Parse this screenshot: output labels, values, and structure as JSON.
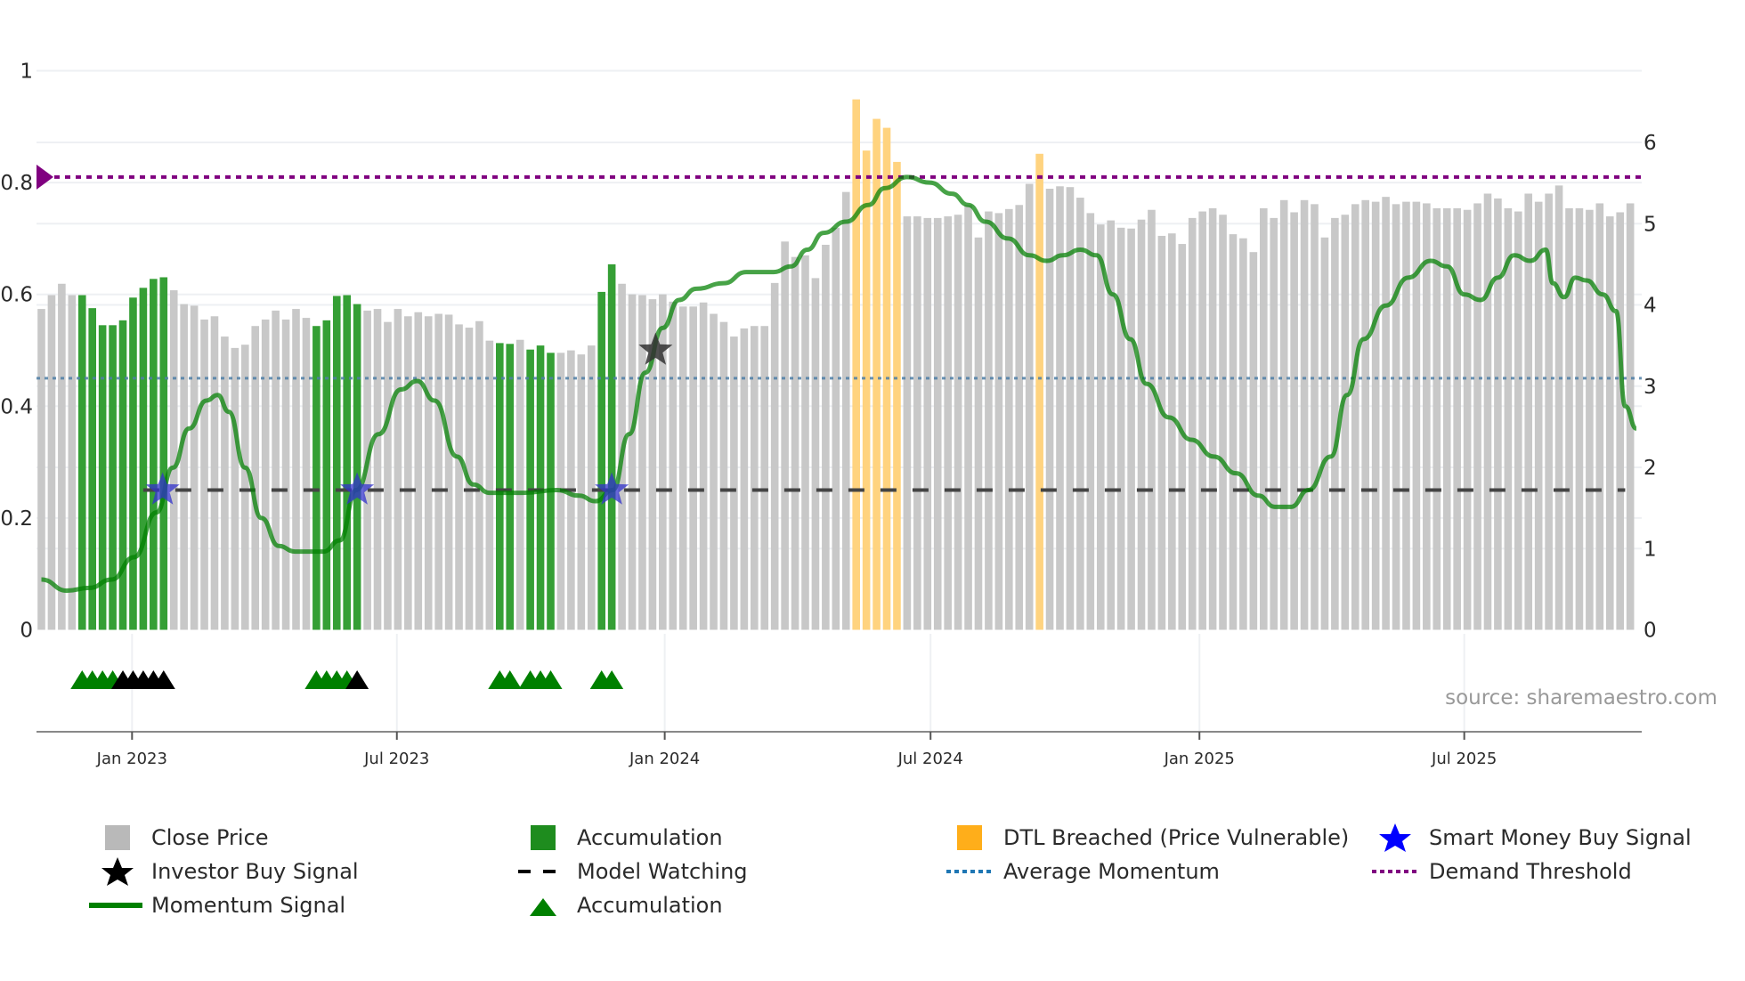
{
  "chart_data": {
    "type": "bar",
    "title": "",
    "x_axis": {
      "unit": "week",
      "start_date": "2022-10-30",
      "interval_days": 7,
      "ticks": [
        {
          "label": "Jan 2023",
          "week": 8.9
        },
        {
          "label": "Jul 2023",
          "week": 34.9
        },
        {
          "label": "Jan 2024",
          "week": 61.2
        },
        {
          "label": "Jul 2024",
          "week": 87.3
        },
        {
          "label": "Jan 2025",
          "week": 113.7
        },
        {
          "label": "Jul 2025",
          "week": 139.7
        }
      ]
    },
    "y_left": {
      "range": [
        0,
        1
      ],
      "ticks": [
        "0",
        "0.2",
        "0.4",
        "0.6",
        "0.8",
        "1"
      ],
      "tick_values": [
        0,
        0.2,
        0.4,
        0.6,
        0.8,
        1
      ]
    },
    "y_right": {
      "range": [
        0,
        6.88
      ],
      "ticks": [
        "0",
        "1",
        "2",
        "3",
        "4",
        "5",
        "6"
      ],
      "tick_values": [
        0,
        1,
        2,
        3,
        4,
        5,
        6
      ]
    },
    "close_price": [
      3.95,
      4.12,
      4.26,
      4.12,
      4.12,
      3.96,
      3.75,
      3.75,
      3.81,
      4.09,
      4.21,
      4.32,
      4.34,
      4.18,
      4.01,
      3.99,
      3.82,
      3.86,
      3.61,
      3.47,
      3.51,
      3.74,
      3.82,
      3.93,
      3.82,
      3.95,
      3.84,
      3.74,
      3.81,
      4.11,
      4.12,
      4.01,
      3.93,
      3.95,
      3.79,
      3.95,
      3.86,
      3.91,
      3.86,
      3.89,
      3.88,
      3.76,
      3.72,
      3.8,
      3.56,
      3.53,
      3.52,
      3.57,
      3.45,
      3.5,
      3.41,
      3.41,
      3.44,
      3.39,
      3.5,
      4.16,
      4.5,
      4.26,
      4.13,
      4.12,
      4.07,
      4.13,
      4.04,
      3.98,
      3.98,
      4.03,
      3.89,
      3.79,
      3.61,
      3.71,
      3.74,
      3.74,
      4.27,
      4.78,
      4.59,
      4.61,
      4.33,
      4.74,
      4.95,
      5.39,
      6.53,
      5.9,
      6.29,
      6.18,
      5.76,
      5.09,
      5.09,
      5.07,
      5.07,
      5.09,
      5.11,
      5.23,
      4.83,
      5.15,
      5.13,
      5.18,
      5.23,
      5.49,
      5.86,
      5.43,
      5.46,
      5.45,
      5.32,
      5.13,
      4.99,
      5.04,
      4.95,
      4.94,
      5.05,
      5.17,
      4.85,
      4.88,
      4.75,
      5.07,
      5.15,
      5.19,
      5.11,
      4.87,
      4.82,
      4.65,
      5.19,
      5.07,
      5.29,
      5.14,
      5.29,
      5.24,
      4.83,
      5.07,
      5.11,
      5.24,
      5.29,
      5.27,
      5.33,
      5.24,
      5.27,
      5.27,
      5.25,
      5.19,
      5.19,
      5.19,
      5.17,
      5.25,
      5.37,
      5.31,
      5.19,
      5.15,
      5.37,
      5.27,
      5.37,
      5.47,
      5.19,
      5.19,
      5.17,
      5.25,
      5.09,
      5.14,
      5.25
    ],
    "accumulation_weeks": [
      4,
      5,
      6,
      7,
      8,
      9,
      10,
      11,
      12,
      27,
      28,
      29,
      30,
      31,
      45,
      46,
      48,
      49,
      50,
      55,
      56
    ],
    "dtl_breached_weeks": [
      80,
      81,
      82,
      83,
      84,
      98
    ],
    "momentum_signal": [
      [
        0,
        0.09
      ],
      [
        2.5,
        0.07
      ],
      [
        4.7,
        0.075
      ],
      [
        6.9,
        0.09
      ],
      [
        9.1,
        0.13
      ],
      [
        11.3,
        0.21
      ],
      [
        12.9,
        0.29
      ],
      [
        14.5,
        0.36
      ],
      [
        16.2,
        0.41
      ],
      [
        17.3,
        0.42
      ],
      [
        18.4,
        0.39
      ],
      [
        20,
        0.29
      ],
      [
        21.6,
        0.2
      ],
      [
        23.3,
        0.15
      ],
      [
        24.9,
        0.14
      ],
      [
        27.7,
        0.14
      ],
      [
        29.3,
        0.16
      ],
      [
        30.9,
        0.25
      ],
      [
        33.1,
        0.35
      ],
      [
        35.3,
        0.43
      ],
      [
        36.9,
        0.445
      ],
      [
        38.6,
        0.41
      ],
      [
        40.8,
        0.31
      ],
      [
        42.4,
        0.26
      ],
      [
        44,
        0.245
      ],
      [
        47.3,
        0.245
      ],
      [
        50.6,
        0.25
      ],
      [
        52.8,
        0.24
      ],
      [
        54.4,
        0.23
      ],
      [
        56.1,
        0.25
      ],
      [
        57.7,
        0.35
      ],
      [
        59.3,
        0.46
      ],
      [
        61,
        0.54
      ],
      [
        62.6,
        0.59
      ],
      [
        64.3,
        0.61
      ],
      [
        67,
        0.62
      ],
      [
        69.2,
        0.64
      ],
      [
        71.9,
        0.64
      ],
      [
        73.6,
        0.65
      ],
      [
        75.2,
        0.68
      ],
      [
        76.8,
        0.71
      ],
      [
        79,
        0.73
      ],
      [
        81.2,
        0.76
      ],
      [
        82.8,
        0.79
      ],
      [
        85,
        0.81
      ],
      [
        87.2,
        0.8
      ],
      [
        89.4,
        0.78
      ],
      [
        91,
        0.76
      ],
      [
        92.7,
        0.73
      ],
      [
        94.9,
        0.7
      ],
      [
        97,
        0.67
      ],
      [
        98.7,
        0.66
      ],
      [
        100.3,
        0.67
      ],
      [
        102,
        0.68
      ],
      [
        103.6,
        0.67
      ],
      [
        105.2,
        0.6
      ],
      [
        106.9,
        0.52
      ],
      [
        108.5,
        0.44
      ],
      [
        110.7,
        0.38
      ],
      [
        112.9,
        0.34
      ],
      [
        115.1,
        0.31
      ],
      [
        117.3,
        0.28
      ],
      [
        119.5,
        0.24
      ],
      [
        121.1,
        0.22
      ],
      [
        122.7,
        0.22
      ],
      [
        124.4,
        0.25
      ],
      [
        126.6,
        0.31
      ],
      [
        128.2,
        0.42
      ],
      [
        129.8,
        0.52
      ],
      [
        132,
        0.58
      ],
      [
        134.2,
        0.63
      ],
      [
        136.4,
        0.66
      ],
      [
        138,
        0.65
      ],
      [
        139.7,
        0.6
      ],
      [
        141.3,
        0.59
      ],
      [
        143,
        0.63
      ],
      [
        144.6,
        0.67
      ],
      [
        146.2,
        0.66
      ],
      [
        147.7,
        0.68
      ],
      [
        148.4,
        0.62
      ],
      [
        149.5,
        0.595
      ],
      [
        150.6,
        0.63
      ],
      [
        151.7,
        0.625
      ],
      [
        153.3,
        0.6
      ],
      [
        154.6,
        0.57
      ],
      [
        155.5,
        0.4
      ],
      [
        156.6,
        0.36
      ]
    ],
    "average_momentum": 0.45,
    "demand_threshold": 0.81,
    "model_watching": {
      "value": 0.25,
      "from_week": 10,
      "to_week": 155.5
    },
    "smart_money_buy_signals": [
      {
        "week": 11.9,
        "value": 0.25
      },
      {
        "week": 31,
        "value": 0.25
      },
      {
        "week": 56,
        "value": 0.25
      }
    ],
    "investor_buy_signals": [
      {
        "week": 60.3,
        "value": 0.5
      }
    ],
    "accumulation_markers": [
      {
        "week": 4,
        "color": "green"
      },
      {
        "week": 5,
        "color": "green"
      },
      {
        "week": 6,
        "color": "green"
      },
      {
        "week": 7,
        "color": "green"
      },
      {
        "week": 8,
        "color": "black"
      },
      {
        "week": 9,
        "color": "black"
      },
      {
        "week": 10,
        "color": "black"
      },
      {
        "week": 11,
        "color": "black"
      },
      {
        "week": 12,
        "color": "black"
      },
      {
        "week": 27,
        "color": "green"
      },
      {
        "week": 28,
        "color": "green"
      },
      {
        "week": 29,
        "color": "green"
      },
      {
        "week": 30,
        "color": "green"
      },
      {
        "week": 31,
        "color": "black"
      },
      {
        "week": 45,
        "color": "green"
      },
      {
        "week": 46,
        "color": "green"
      },
      {
        "week": 48,
        "color": "green"
      },
      {
        "week": 49,
        "color": "green"
      },
      {
        "week": 50,
        "color": "green"
      },
      {
        "week": 55,
        "color": "green"
      },
      {
        "week": 56,
        "color": "green"
      }
    ],
    "annotation": "source: sharemaestro.com",
    "legend": [
      {
        "label": "Close Price",
        "symbol": "square",
        "color": "#b9b9b9"
      },
      {
        "label": "Accumulation",
        "symbol": "square",
        "color": "#1e8c1e"
      },
      {
        "label": "DTL Breached (Price Vulnerable)",
        "symbol": "square",
        "color": "#ffae1a"
      },
      {
        "label": "Smart Money Buy Signal",
        "symbol": "star",
        "color": "#0000ff"
      },
      {
        "label": "Investor Buy Signal",
        "symbol": "star",
        "color": "#000000"
      },
      {
        "label": "Model Watching",
        "symbol": "dash",
        "color": "#000000"
      },
      {
        "label": "Average Momentum",
        "symbol": "dot",
        "color": "#1f77b4"
      },
      {
        "label": "Demand Threshold",
        "symbol": "dot",
        "color": "#800080"
      },
      {
        "label": "Momentum Signal",
        "symbol": "line",
        "color": "#008000"
      },
      {
        "label": "Accumulation",
        "symbol": "triangle",
        "color": "#008000"
      }
    ],
    "legend_position": "bottom",
    "colors": {
      "price": "#c8c8c8",
      "accumulation": "#2a9a2a",
      "dtl": "#ffd37f",
      "momentum": "#008000",
      "avg": "#4f7fa6",
      "threshold": "#800080",
      "watching": "#444444"
    }
  }
}
